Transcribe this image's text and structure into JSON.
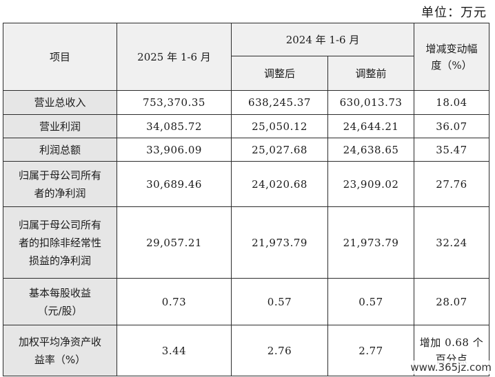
{
  "unit_label": "单位：万元",
  "headers": {
    "item": "项目",
    "period_2025": "2025 年 1-6 月",
    "period_2024": "2024 年 1-6 月",
    "adjusted_after": "调整后",
    "adjusted_before": "调整前",
    "change_line1": "增减变动幅",
    "change_line2": "度（%）"
  },
  "rows": [
    {
      "label_lines": [
        "营业总收入"
      ],
      "v2025": "753,370.35",
      "after": "638,245.37",
      "before": "630,013.73",
      "change_lines": [
        "18.04"
      ]
    },
    {
      "label_lines": [
        "营业利润"
      ],
      "v2025": "34,085.72",
      "after": "25,050.12",
      "before": "24,644.21",
      "change_lines": [
        "36.07"
      ]
    },
    {
      "label_lines": [
        "利润总额"
      ],
      "v2025": "33,906.09",
      "after": "25,027.68",
      "before": "24,638.65",
      "change_lines": [
        "35.47"
      ]
    },
    {
      "label_lines": [
        "归属于母公司所有",
        "者的净利润"
      ],
      "v2025": "30,689.46",
      "after": "24,020.68",
      "before": "23,909.02",
      "change_lines": [
        "27.76"
      ]
    },
    {
      "label_lines": [
        "归属于母公司所有",
        "者的扣除非经常性",
        "损益的净利润"
      ],
      "v2025": "29,057.21",
      "after": "21,973.79",
      "before": "21,973.79",
      "change_lines": [
        "32.24"
      ]
    },
    {
      "label_lines": [
        "基本每股收益",
        "（元/股）"
      ],
      "v2025": "0.73",
      "after": "0.57",
      "before": "0.57",
      "change_lines": [
        "28.07"
      ]
    },
    {
      "label_lines": [
        "加权平均净资产收",
        "益率（%）"
      ],
      "v2025": "3.44",
      "after": "2.76",
      "before": "2.77",
      "change_lines": [
        "增加 0.68 个",
        "百分点"
      ]
    }
  ],
  "watermark": "www.365jz.com"
}
